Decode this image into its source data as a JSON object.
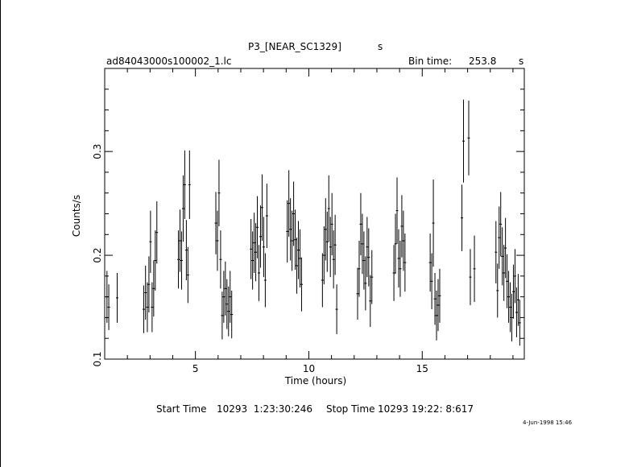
{
  "header": {
    "title": "P3_[NEAR_SC1329]",
    "title_unit": "s",
    "file_name": "ad84043000s100002_1.lc",
    "bin_time_label": "Bin time:",
    "bin_time_value": "253.8",
    "bin_time_unit": "s"
  },
  "footer": {
    "start_label": "Start Time",
    "start_value": "10293  1:23:30:246",
    "stop_label": "Stop Time",
    "stop_value": "10293 19:22: 8:617",
    "stamp": "4-Jun-1998 15:46"
  },
  "chart_data": {
    "type": "scatter",
    "xlabel": "Time (hours)",
    "ylabel": "Counts/s",
    "xlim": [
      1.0,
      19.5
    ],
    "ylim": [
      0.1,
      0.38
    ],
    "xticks": [
      5,
      10,
      15
    ],
    "yticks": [
      0.1,
      0.2,
      0.3
    ],
    "grid": false,
    "error_bars": true,
    "points": [
      {
        "x": 1.1,
        "y": 0.16,
        "err": 0.025
      },
      {
        "x": 1.18,
        "y": 0.15,
        "err": 0.022
      },
      {
        "x": 1.55,
        "y": 0.159,
        "err": 0.024
      },
      {
        "x": 2.72,
        "y": 0.148,
        "err": 0.023
      },
      {
        "x": 2.8,
        "y": 0.164,
        "err": 0.026
      },
      {
        "x": 2.88,
        "y": 0.15,
        "err": 0.024
      },
      {
        "x": 2.95,
        "y": 0.172,
        "err": 0.027
      },
      {
        "x": 3.02,
        "y": 0.213,
        "err": 0.03
      },
      {
        "x": 3.09,
        "y": 0.15,
        "err": 0.024
      },
      {
        "x": 3.16,
        "y": 0.168,
        "err": 0.027
      },
      {
        "x": 3.23,
        "y": 0.195,
        "err": 0.029
      },
      {
        "x": 3.3,
        "y": 0.222,
        "err": 0.03
      },
      {
        "x": 4.25,
        "y": 0.196,
        "err": 0.028
      },
      {
        "x": 4.32,
        "y": 0.214,
        "err": 0.03
      },
      {
        "x": 4.39,
        "y": 0.195,
        "err": 0.028
      },
      {
        "x": 4.46,
        "y": 0.245,
        "err": 0.032
      },
      {
        "x": 4.53,
        "y": 0.268,
        "err": 0.033
      },
      {
        "x": 4.6,
        "y": 0.205,
        "err": 0.029
      },
      {
        "x": 4.67,
        "y": 0.181,
        "err": 0.027
      },
      {
        "x": 4.74,
        "y": 0.268,
        "err": 0.033
      },
      {
        "x": 5.9,
        "y": 0.231,
        "err": 0.03
      },
      {
        "x": 5.97,
        "y": 0.214,
        "err": 0.029
      },
      {
        "x": 6.04,
        "y": 0.26,
        "err": 0.032
      },
      {
        "x": 6.11,
        "y": 0.196,
        "err": 0.028
      },
      {
        "x": 6.18,
        "y": 0.142,
        "err": 0.023
      },
      {
        "x": 6.25,
        "y": 0.16,
        "err": 0.025
      },
      {
        "x": 6.32,
        "y": 0.168,
        "err": 0.026
      },
      {
        "x": 6.39,
        "y": 0.153,
        "err": 0.024
      },
      {
        "x": 6.46,
        "y": 0.146,
        "err": 0.024
      },
      {
        "x": 6.53,
        "y": 0.16,
        "err": 0.025
      },
      {
        "x": 6.6,
        "y": 0.143,
        "err": 0.023
      },
      {
        "x": 7.45,
        "y": 0.206,
        "err": 0.029
      },
      {
        "x": 7.52,
        "y": 0.195,
        "err": 0.028
      },
      {
        "x": 7.59,
        "y": 0.212,
        "err": 0.029
      },
      {
        "x": 7.66,
        "y": 0.203,
        "err": 0.028
      },
      {
        "x": 7.73,
        "y": 0.227,
        "err": 0.03
      },
      {
        "x": 7.8,
        "y": 0.183,
        "err": 0.027
      },
      {
        "x": 7.87,
        "y": 0.218,
        "err": 0.03
      },
      {
        "x": 7.94,
        "y": 0.246,
        "err": 0.032
      },
      {
        "x": 8.01,
        "y": 0.208,
        "err": 0.029
      },
      {
        "x": 8.08,
        "y": 0.176,
        "err": 0.026
      },
      {
        "x": 8.15,
        "y": 0.238,
        "err": 0.031
      },
      {
        "x": 9.05,
        "y": 0.223,
        "err": 0.03
      },
      {
        "x": 9.12,
        "y": 0.25,
        "err": 0.032
      },
      {
        "x": 9.19,
        "y": 0.225,
        "err": 0.03
      },
      {
        "x": 9.26,
        "y": 0.214,
        "err": 0.029
      },
      {
        "x": 9.33,
        "y": 0.24,
        "err": 0.031
      },
      {
        "x": 9.4,
        "y": 0.215,
        "err": 0.029
      },
      {
        "x": 9.47,
        "y": 0.19,
        "err": 0.027
      },
      {
        "x": 9.54,
        "y": 0.205,
        "err": 0.028
      },
      {
        "x": 9.61,
        "y": 0.197,
        "err": 0.028
      },
      {
        "x": 9.68,
        "y": 0.172,
        "err": 0.026
      },
      {
        "x": 10.6,
        "y": 0.176,
        "err": 0.026
      },
      {
        "x": 10.67,
        "y": 0.2,
        "err": 0.028
      },
      {
        "x": 10.74,
        "y": 0.225,
        "err": 0.03
      },
      {
        "x": 10.81,
        "y": 0.213,
        "err": 0.029
      },
      {
        "x": 10.88,
        "y": 0.245,
        "err": 0.032
      },
      {
        "x": 10.95,
        "y": 0.208,
        "err": 0.029
      },
      {
        "x": 11.02,
        "y": 0.23,
        "err": 0.03
      },
      {
        "x": 11.09,
        "y": 0.196,
        "err": 0.028
      },
      {
        "x": 11.16,
        "y": 0.21,
        "err": 0.029
      },
      {
        "x": 11.23,
        "y": 0.148,
        "err": 0.024
      },
      {
        "x": 12.15,
        "y": 0.163,
        "err": 0.025
      },
      {
        "x": 12.22,
        "y": 0.187,
        "err": 0.027
      },
      {
        "x": 12.29,
        "y": 0.23,
        "err": 0.03
      },
      {
        "x": 12.36,
        "y": 0.211,
        "err": 0.029
      },
      {
        "x": 12.43,
        "y": 0.195,
        "err": 0.028
      },
      {
        "x": 12.5,
        "y": 0.173,
        "err": 0.026
      },
      {
        "x": 12.57,
        "y": 0.208,
        "err": 0.029
      },
      {
        "x": 12.64,
        "y": 0.198,
        "err": 0.028
      },
      {
        "x": 12.71,
        "y": 0.156,
        "err": 0.025
      },
      {
        "x": 12.78,
        "y": 0.179,
        "err": 0.026
      },
      {
        "x": 13.75,
        "y": 0.183,
        "err": 0.027
      },
      {
        "x": 13.82,
        "y": 0.211,
        "err": 0.029
      },
      {
        "x": 13.89,
        "y": 0.243,
        "err": 0.032
      },
      {
        "x": 13.96,
        "y": 0.197,
        "err": 0.028
      },
      {
        "x": 14.03,
        "y": 0.187,
        "err": 0.027
      },
      {
        "x": 14.1,
        "y": 0.228,
        "err": 0.03
      },
      {
        "x": 14.17,
        "y": 0.214,
        "err": 0.029
      },
      {
        "x": 14.24,
        "y": 0.193,
        "err": 0.028
      },
      {
        "x": 15.35,
        "y": 0.193,
        "err": 0.028
      },
      {
        "x": 15.42,
        "y": 0.175,
        "err": 0.027
      },
      {
        "x": 15.49,
        "y": 0.231,
        "err": 0.042
      },
      {
        "x": 15.56,
        "y": 0.158,
        "err": 0.025
      },
      {
        "x": 15.63,
        "y": 0.142,
        "err": 0.024
      },
      {
        "x": 15.7,
        "y": 0.152,
        "err": 0.025
      },
      {
        "x": 15.77,
        "y": 0.161,
        "err": 0.026
      },
      {
        "x": 16.75,
        "y": 0.236,
        "err": 0.032
      },
      {
        "x": 16.82,
        "y": 0.31,
        "err": 0.04
      },
      {
        "x": 17.05,
        "y": 0.313,
        "err": 0.036
      },
      {
        "x": 17.12,
        "y": 0.179,
        "err": 0.027
      },
      {
        "x": 17.3,
        "y": 0.187,
        "err": 0.032
      },
      {
        "x": 18.25,
        "y": 0.203,
        "err": 0.03
      },
      {
        "x": 18.32,
        "y": 0.166,
        "err": 0.026
      },
      {
        "x": 18.39,
        "y": 0.217,
        "err": 0.03
      },
      {
        "x": 18.46,
        "y": 0.23,
        "err": 0.031
      },
      {
        "x": 18.53,
        "y": 0.199,
        "err": 0.028
      },
      {
        "x": 18.6,
        "y": 0.183,
        "err": 0.027
      },
      {
        "x": 18.67,
        "y": 0.207,
        "err": 0.029
      },
      {
        "x": 18.74,
        "y": 0.175,
        "err": 0.026
      },
      {
        "x": 18.81,
        "y": 0.16,
        "err": 0.025
      },
      {
        "x": 18.88,
        "y": 0.15,
        "err": 0.024
      },
      {
        "x": 18.95,
        "y": 0.14,
        "err": 0.023
      },
      {
        "x": 19.02,
        "y": 0.165,
        "err": 0.026
      },
      {
        "x": 19.09,
        "y": 0.18,
        "err": 0.026
      },
      {
        "x": 19.16,
        "y": 0.145,
        "err": 0.024
      },
      {
        "x": 19.23,
        "y": 0.157,
        "err": 0.025
      },
      {
        "x": 19.3,
        "y": 0.135,
        "err": 0.022
      }
    ]
  }
}
